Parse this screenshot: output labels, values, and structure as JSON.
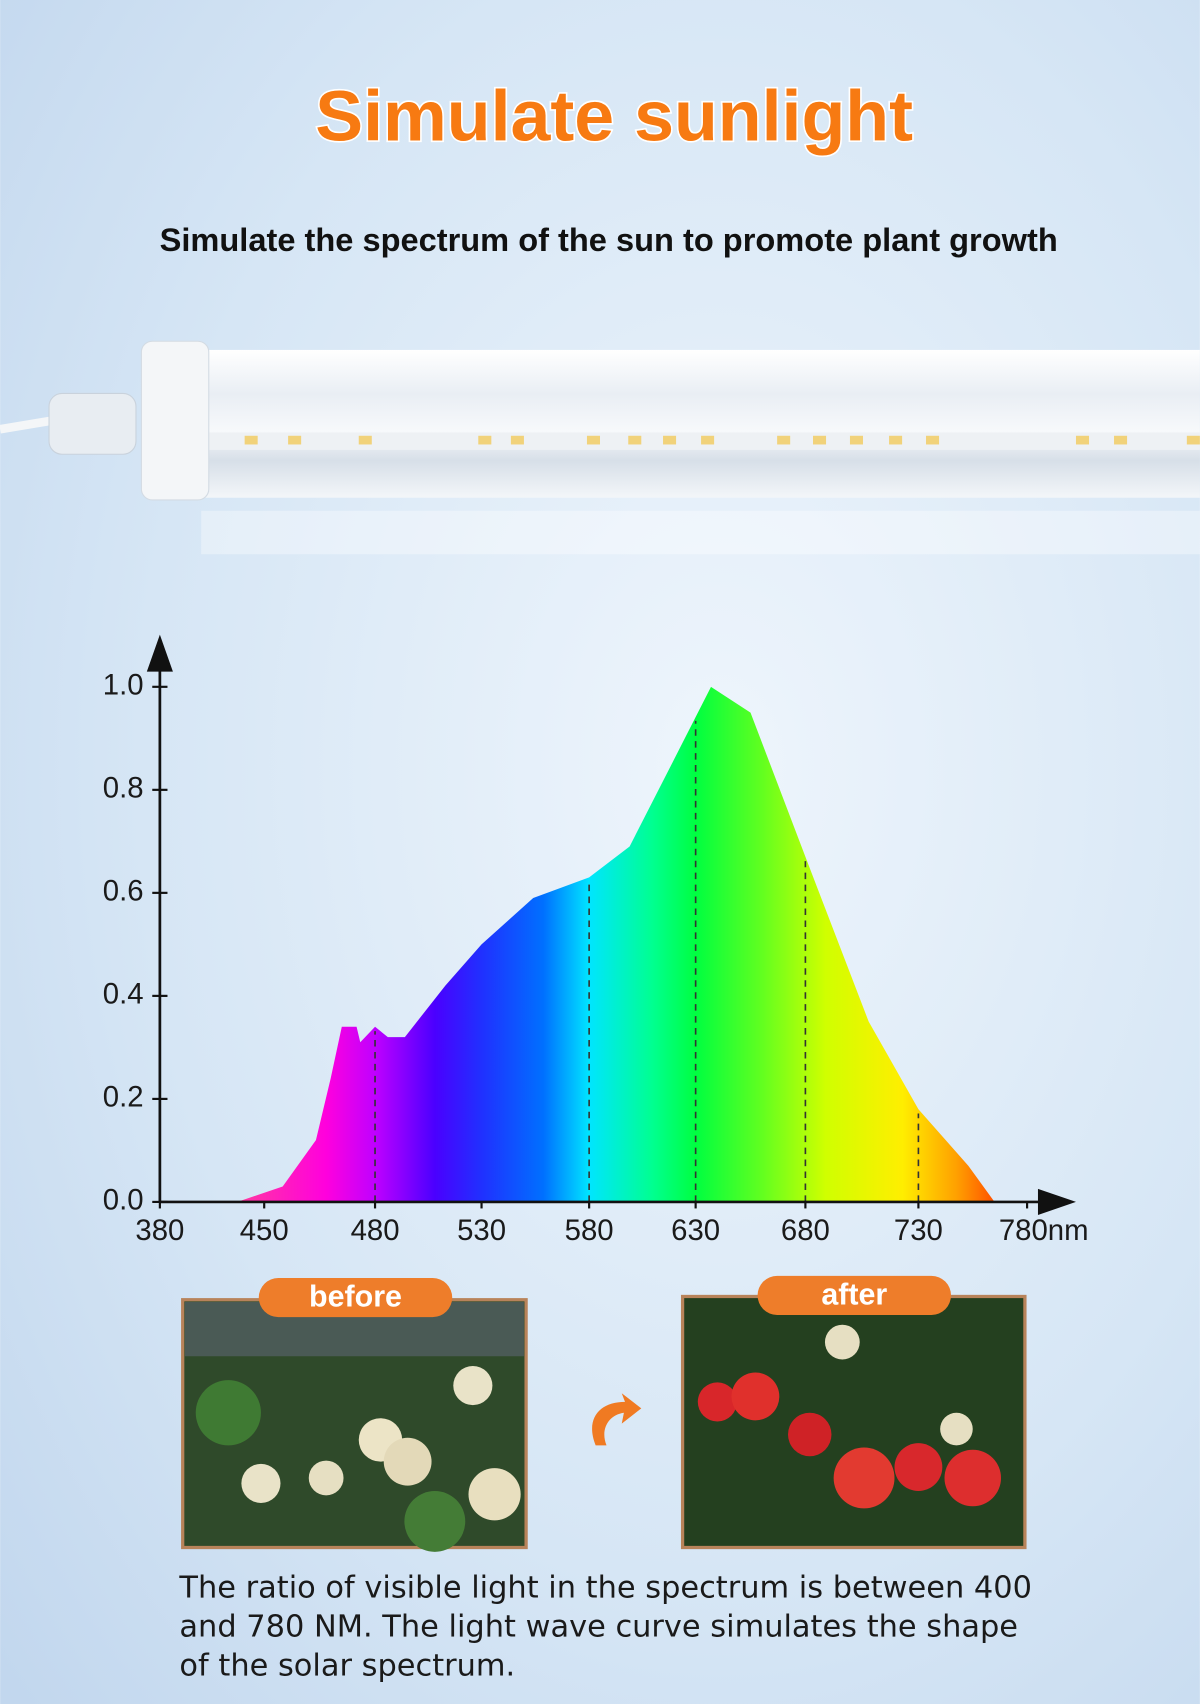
{
  "chart_data": {
    "type": "area",
    "title": "Simulate sunlight",
    "subtitle": "Simulate the spectrum of the sun to promote plant growth",
    "x": [
      432,
      455,
      464,
      468,
      471,
      475,
      476,
      480,
      486,
      494,
      513,
      530,
      554,
      580,
      599,
      620,
      637,
      655,
      680,
      708,
      730,
      753,
      765
    ],
    "values": [
      0.0,
      0.03,
      0.12,
      0.24,
      0.34,
      0.34,
      0.31,
      0.34,
      0.32,
      0.32,
      0.42,
      0.5,
      0.59,
      0.63,
      0.69,
      0.86,
      1.0,
      0.95,
      0.67,
      0.35,
      0.18,
      0.07,
      0.0
    ],
    "xlim": [
      380,
      780
    ],
    "xticks": [
      380,
      450,
      480,
      530,
      580,
      630,
      680,
      730,
      {
        "value": 780,
        "label": "780nm"
      }
    ],
    "ylim": [
      0,
      1
    ],
    "yticks": [
      {
        "value": 0,
        "label": "0.0"
      },
      0.2,
      0.4,
      0.6,
      0.8,
      {
        "value": 1,
        "label": "1.0"
      }
    ]
  },
  "comparison": {
    "before": "before",
    "after": "after"
  },
  "caption": [
    "The ratio of visible light in the spectrum is between 400",
    "and 780 NM. The light wave curve simulates the shape",
    "of the solar spectrum."
  ]
}
